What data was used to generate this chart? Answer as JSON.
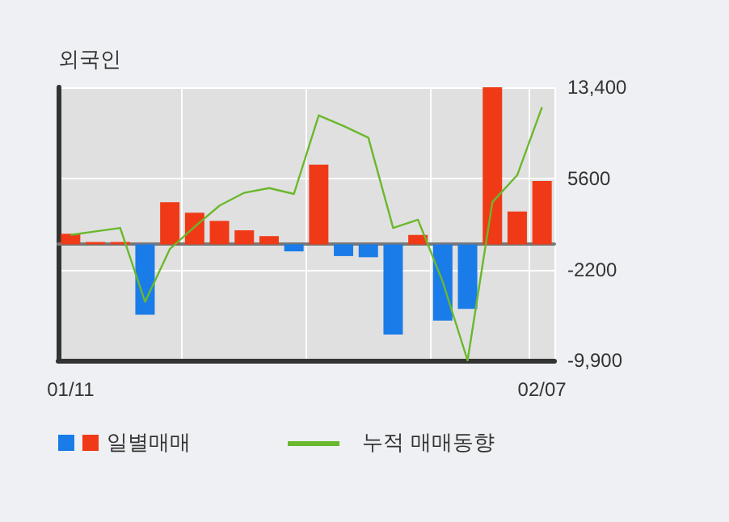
{
  "chart_data": {
    "type": "bar",
    "title": "외국인",
    "categories": [
      "01/11",
      null,
      null,
      null,
      null,
      null,
      null,
      null,
      null,
      null,
      null,
      null,
      null,
      null,
      null,
      null,
      null,
      null,
      null,
      "02/07"
    ],
    "series": [
      {
        "name": "일별매매",
        "colors": [
          "#f03a17",
          "#f03a17",
          "#f03a17",
          "#1a7ce8",
          "#f03a17",
          "#f03a17",
          "#f03a17",
          "#f03a17",
          "#f03a17",
          "#1a7ce8",
          "#f03a17",
          "#1a7ce8",
          "#1a7ce8",
          "#1a7ce8",
          "#f03a17",
          "#1a7ce8",
          "#1a7ce8",
          "#f03a17",
          "#f03a17",
          "#f03a17"
        ],
        "values": [
          900,
          200,
          200,
          -6000,
          3600,
          2700,
          2000,
          1200,
          700,
          -600,
          6800,
          -1000,
          -1100,
          -7700,
          800,
          -6500,
          -5500,
          13400,
          2800,
          5400
        ]
      },
      {
        "name": "누적 매매동향",
        "type": "line",
        "color": "#6ab82c",
        "values": [
          800,
          1100,
          1400,
          -4900,
          -400,
          1500,
          3300,
          4400,
          4800,
          4300,
          11000,
          10100,
          9100,
          1400,
          2100,
          -3200,
          -9900,
          3600,
          5900,
          11700
        ]
      }
    ],
    "ylim": [
      -9900,
      13400
    ],
    "yticks": [
      {
        "value": 13400,
        "label": "13,400"
      },
      5600,
      -2200,
      {
        "value": -9900,
        "label": "-9,900"
      }
    ],
    "grid": true,
    "legend": "bottom",
    "marker": "none"
  }
}
